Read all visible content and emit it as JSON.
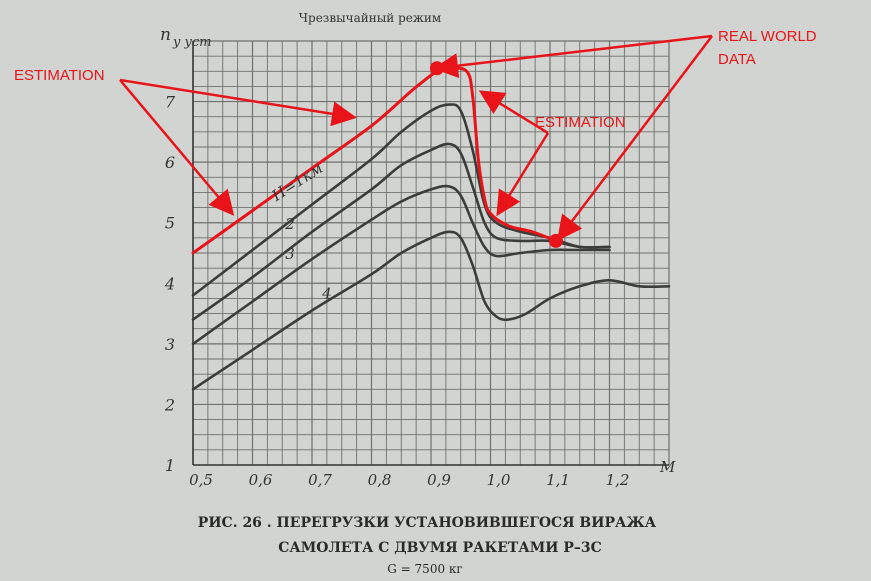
{
  "chart_data": {
    "type": "line",
    "title": "Чрезвычайный режим",
    "ylabel_main": "n",
    "ylabel_sub": "y уст",
    "xlabel": "M",
    "xlim": [
      0.5,
      1.3
    ],
    "ylim": [
      1,
      8
    ],
    "grid": true,
    "x_ticks": [
      0.5,
      0.6,
      0.7,
      0.8,
      0.9,
      1.0,
      1.1,
      1.2
    ],
    "x_tick_labels": [
      "0,5",
      "0,6",
      "0,7",
      "0,8",
      "0,9",
      "1,0",
      "1,1",
      "1,2"
    ],
    "y_ticks": [
      1,
      2,
      3,
      4,
      5,
      6,
      7
    ],
    "y_tick_labels": [
      "1",
      "2",
      "3",
      "4",
      "5",
      "6",
      "7"
    ],
    "series": [
      {
        "name": "H=1км",
        "points": [
          [
            0.5,
            3.8
          ],
          [
            0.6,
            4.55
          ],
          [
            0.7,
            5.3
          ],
          [
            0.8,
            6.05
          ],
          [
            0.85,
            6.5
          ],
          [
            0.9,
            6.85
          ],
          [
            0.93,
            6.95
          ],
          [
            0.95,
            6.85
          ],
          [
            0.97,
            6.2
          ],
          [
            0.99,
            5.3
          ],
          [
            1.01,
            5.0
          ],
          [
            1.05,
            4.85
          ],
          [
            1.1,
            4.75
          ],
          [
            1.15,
            4.6
          ],
          [
            1.2,
            4.6
          ]
        ]
      },
      {
        "name": "2",
        "points": [
          [
            0.5,
            3.4
          ],
          [
            0.6,
            4.1
          ],
          [
            0.7,
            4.85
          ],
          [
            0.8,
            5.55
          ],
          [
            0.85,
            5.95
          ],
          [
            0.9,
            6.2
          ],
          [
            0.93,
            6.3
          ],
          [
            0.95,
            6.15
          ],
          [
            0.97,
            5.6
          ],
          [
            0.99,
            5.0
          ],
          [
            1.01,
            4.75
          ],
          [
            1.05,
            4.7
          ],
          [
            1.1,
            4.7
          ],
          [
            1.15,
            4.6
          ],
          [
            1.2,
            4.6
          ]
        ]
      },
      {
        "name": "3",
        "points": [
          [
            0.5,
            3.0
          ],
          [
            0.6,
            3.7
          ],
          [
            0.7,
            4.4
          ],
          [
            0.8,
            5.05
          ],
          [
            0.85,
            5.35
          ],
          [
            0.9,
            5.55
          ],
          [
            0.93,
            5.6
          ],
          [
            0.95,
            5.45
          ],
          [
            0.97,
            5.0
          ],
          [
            0.99,
            4.6
          ],
          [
            1.01,
            4.45
          ],
          [
            1.05,
            4.5
          ],
          [
            1.1,
            4.55
          ],
          [
            1.15,
            4.55
          ],
          [
            1.2,
            4.55
          ]
        ]
      },
      {
        "name": "4",
        "points": [
          [
            0.5,
            2.25
          ],
          [
            0.6,
            2.9
          ],
          [
            0.7,
            3.55
          ],
          [
            0.8,
            4.15
          ],
          [
            0.85,
            4.5
          ],
          [
            0.9,
            4.75
          ],
          [
            0.93,
            4.85
          ],
          [
            0.95,
            4.75
          ],
          [
            0.97,
            4.3
          ],
          [
            0.99,
            3.7
          ],
          [
            1.01,
            3.45
          ],
          [
            1.03,
            3.4
          ],
          [
            1.06,
            3.5
          ],
          [
            1.1,
            3.75
          ],
          [
            1.15,
            3.95
          ],
          [
            1.2,
            4.05
          ],
          [
            1.25,
            3.95
          ],
          [
            1.3,
            3.95
          ]
        ]
      },
      {
        "name": "",
        "points": [
          [
            0.5,
            4.5
          ],
          [
            0.6,
            5.2
          ],
          [
            0.7,
            5.9
          ],
          [
            0.8,
            6.6
          ],
          [
            0.87,
            7.2
          ],
          [
            0.91,
            7.5
          ],
          [
            0.93,
            7.55
          ],
          [
            0.96,
            7.5
          ],
          [
            0.97,
            7.1
          ],
          [
            0.98,
            6.0
          ],
          [
            0.99,
            5.4
          ],
          [
            1.0,
            5.15
          ],
          [
            1.03,
            4.95
          ],
          [
            1.07,
            4.85
          ],
          [
            1.11,
            4.7
          ]
        ],
        "color": "#e8141a"
      }
    ],
    "markers": [
      {
        "x": 0.91,
        "y": 7.55,
        "color": "#e8141a"
      },
      {
        "x": 1.11,
        "y": 4.7,
        "color": "#e8141a"
      }
    ]
  },
  "annotations": {
    "estimation_left": "ESTIMATION",
    "estimation_right": "ESTIMATION",
    "real_world_data_line1": "REAL WORLD",
    "real_world_data_line2": "DATA",
    "color": "#e8141a"
  },
  "caption": {
    "line1": "РИС. 26 . ПЕРЕГРУЗКИ УСТАНОВИВШЕГОСЯ ВИРАЖА",
    "line2": "САМОЛЕТА С ДВУМЯ РАКЕТАМИ Р–3С",
    "line3": "G = 7500 кг"
  }
}
